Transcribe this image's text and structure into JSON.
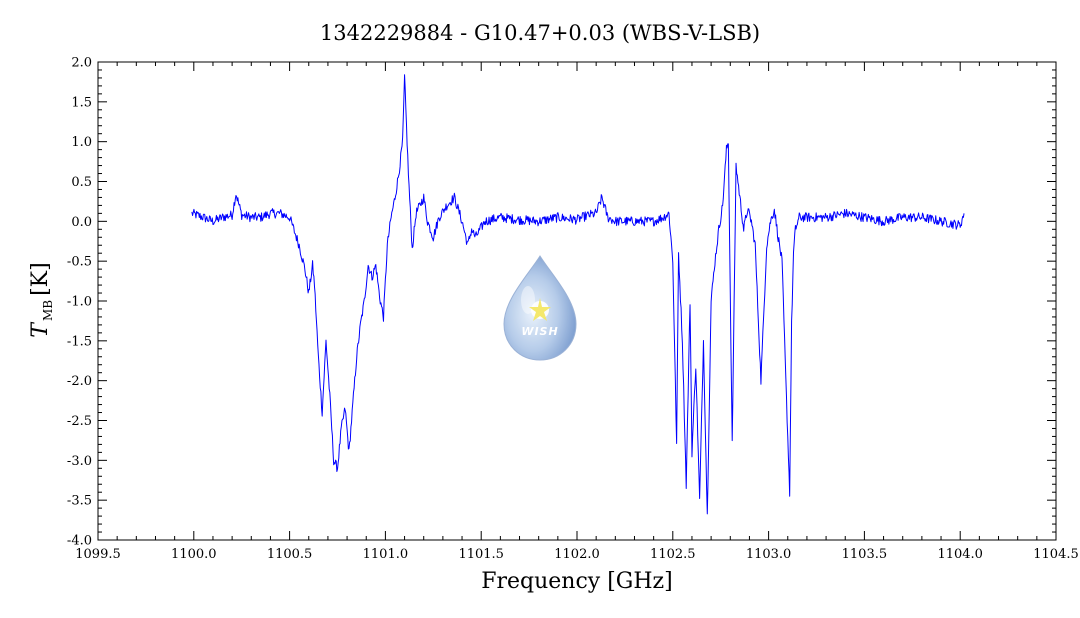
{
  "chart_data": {
    "type": "line",
    "title": "1342229884 - G10.47+0.03 (WBS-V-LSB)",
    "xlabel": "Frequency [GHz]",
    "ylabel_main": "T",
    "ylabel_sub": "MB",
    "ylabel_unit": "[K]",
    "xlim": [
      1099.5,
      1104.5
    ],
    "ylim": [
      -4.0,
      2.0
    ],
    "x_ticks": [
      1099.5,
      1100.0,
      1100.5,
      1101.0,
      1101.5,
      1102.0,
      1102.5,
      1103.0,
      1103.5,
      1104.0,
      1104.5
    ],
    "x_tick_labels": [
      "1099.5",
      "1100.0",
      "1100.5",
      "1101.0",
      "1101.5",
      "1102.0",
      "1102.5",
      "1103.0",
      "1103.5",
      "1104.0",
      "1104.5"
    ],
    "y_ticks": [
      2.0,
      1.5,
      1.0,
      0.5,
      0.0,
      -0.5,
      -1.0,
      -1.5,
      -2.0,
      -2.5,
      -3.0,
      -3.5,
      -4.0
    ],
    "y_tick_labels": [
      "2.0",
      "1.5",
      "1.0",
      "0.5",
      "0.0",
      "-0.5",
      "-1.0",
      "-1.5",
      "-2.0",
      "-2.5",
      "-3.0",
      "-3.5",
      "-4.0"
    ],
    "grid": false,
    "line_color": "#0000ff",
    "series": [
      {
        "x": [
          1099.99,
          1100.05,
          1100.1,
          1100.15,
          1100.2,
          1100.22,
          1100.25,
          1100.3,
          1100.35,
          1100.4,
          1100.45,
          1100.5,
          1100.55,
          1100.58,
          1100.6,
          1100.62,
          1100.63,
          1100.65,
          1100.67,
          1100.69,
          1100.71,
          1100.73,
          1100.75,
          1100.77,
          1100.79,
          1100.81,
          1100.83,
          1100.85,
          1100.87,
          1100.89,
          1100.91,
          1100.93,
          1100.95,
          1100.97,
          1100.99,
          1101.01,
          1101.03,
          1101.05,
          1101.07,
          1101.09,
          1101.1,
          1101.12,
          1101.14,
          1101.16,
          1101.18,
          1101.2,
          1101.22,
          1101.25,
          1101.28,
          1101.32,
          1101.36,
          1101.4,
          1101.43,
          1101.45,
          1101.47,
          1101.52,
          1101.6,
          1101.7,
          1101.8,
          1101.9,
          1102.0,
          1102.05,
          1102.1,
          1102.13,
          1102.16,
          1102.2,
          1102.3,
          1102.4,
          1102.45,
          1102.48,
          1102.5,
          1102.52,
          1102.53,
          1102.55,
          1102.57,
          1102.59,
          1102.6,
          1102.62,
          1102.64,
          1102.66,
          1102.68,
          1102.7,
          1102.72,
          1102.74,
          1102.76,
          1102.78,
          1102.79,
          1102.81,
          1102.83,
          1102.85,
          1102.87,
          1102.89,
          1102.91,
          1102.93,
          1102.96,
          1102.99,
          1103.01,
          1103.03,
          1103.05,
          1103.07,
          1103.09,
          1103.11,
          1103.12,
          1103.13,
          1103.14,
          1103.16,
          1103.2,
          1103.3,
          1103.4,
          1103.5,
          1103.6,
          1103.7,
          1103.8,
          1103.9,
          1104.0,
          1104.02
        ],
        "values": [
          0.1,
          0.05,
          0.0,
          0.05,
          0.08,
          0.35,
          0.08,
          0.05,
          0.05,
          0.1,
          0.1,
          0.05,
          -0.3,
          -0.6,
          -0.9,
          -0.55,
          -0.8,
          -1.7,
          -2.4,
          -1.5,
          -2.2,
          -3.0,
          -3.1,
          -2.6,
          -2.35,
          -2.9,
          -2.3,
          -1.7,
          -1.3,
          -1.0,
          -0.55,
          -0.7,
          -0.55,
          -0.95,
          -1.2,
          -0.3,
          0.05,
          0.3,
          0.6,
          1.0,
          1.8,
          0.6,
          -0.35,
          0.1,
          0.2,
          0.3,
          0.0,
          -0.2,
          0.05,
          0.2,
          0.3,
          0.0,
          -0.3,
          -0.1,
          -0.2,
          0.0,
          0.05,
          0.02,
          0.0,
          0.05,
          0.02,
          0.07,
          0.1,
          0.3,
          0.05,
          0.0,
          0.0,
          0.0,
          0.05,
          0.1,
          -0.5,
          -2.8,
          -0.4,
          -1.5,
          -3.3,
          -1.0,
          -2.9,
          -1.8,
          -3.5,
          -1.5,
          -3.7,
          -1.0,
          -0.5,
          -0.1,
          0.2,
          0.9,
          1.0,
          -2.8,
          0.7,
          0.3,
          -0.1,
          0.15,
          0.0,
          -0.3,
          -2.0,
          -0.3,
          0.0,
          0.15,
          -0.2,
          -0.5,
          -2.0,
          -3.4,
          -1.3,
          -0.4,
          -0.1,
          0.05,
          0.05,
          0.05,
          0.1,
          0.05,
          0.0,
          0.05,
          0.05,
          0.0,
          -0.05,
          0.1
        ]
      }
    ],
    "logo_text": "WISH"
  }
}
